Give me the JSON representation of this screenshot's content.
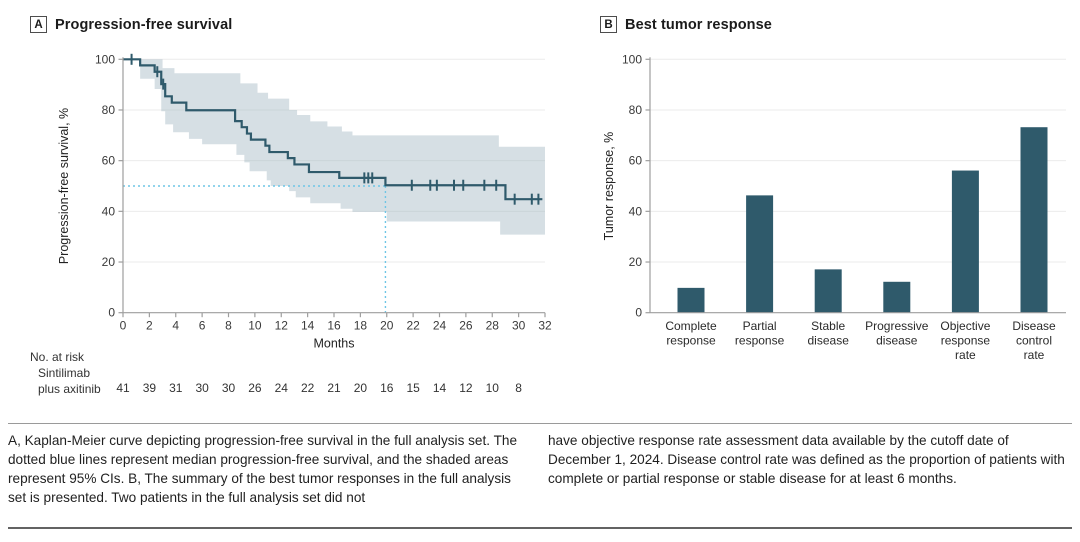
{
  "panelA": {
    "letter": "A",
    "title": "Progression-free survival"
  },
  "panelB": {
    "letter": "B",
    "title": "Best tumor response"
  },
  "colors": {
    "teal": "#2f5a6b",
    "ci_band": "#a5b7c4",
    "median_dotted": "#6ec6e6",
    "gridline": "#ebebeb",
    "axis": "#9e9e9e",
    "tick_text": "#3a3a3a"
  },
  "chart_data": [
    {
      "type": "line",
      "subtype": "kaplan-meier-step",
      "title": "Progression-free survival",
      "xlabel": "Months",
      "ylabel": "Progression-free survival, %",
      "xlim": [
        0,
        32
      ],
      "ylim": [
        0,
        100
      ],
      "xticks": [
        0,
        2,
        4,
        6,
        8,
        10,
        12,
        14,
        16,
        18,
        20,
        22,
        24,
        26,
        28,
        30,
        32
      ],
      "yticks": [
        0,
        20,
        40,
        60,
        80,
        100
      ],
      "grid": "horizontal",
      "series": [
        {
          "name": "Sintilimab plus axitinib",
          "steps": [
            [
              0,
              100
            ],
            [
              1.3,
              97.6
            ],
            [
              2.4,
              95.1
            ],
            [
              2.9,
              90.2
            ],
            [
              3.2,
              85.4
            ],
            [
              3.7,
              82.9
            ],
            [
              4.8,
              79.9
            ],
            [
              8.5,
              75.6
            ],
            [
              9.0,
              73.2
            ],
            [
              9.4,
              70.7
            ],
            [
              9.7,
              68.3
            ],
            [
              10.8,
              65.9
            ],
            [
              11.1,
              63.4
            ],
            [
              12.5,
              61.0
            ],
            [
              13.0,
              58.5
            ],
            [
              14.1,
              55.5
            ],
            [
              16.4,
              53.2
            ],
            [
              19.9,
              50.3
            ],
            [
              29.0,
              44.8
            ]
          ],
          "end_x": 31.8,
          "censors": [
            [
              0.65,
              100
            ],
            [
              2.6,
              95.1
            ],
            [
              3.05,
              90.2
            ],
            [
              18.3,
              53.2
            ],
            [
              18.6,
              53.2
            ],
            [
              18.9,
              53.2
            ],
            [
              21.9,
              50.3
            ],
            [
              23.3,
              50.3
            ],
            [
              23.8,
              50.3
            ],
            [
              25.1,
              50.3
            ],
            [
              25.8,
              50.3
            ],
            [
              27.4,
              50.3
            ],
            [
              28.3,
              50.3
            ],
            [
              29.7,
              44.8
            ],
            [
              31.0,
              44.8
            ],
            [
              31.5,
              44.8
            ]
          ]
        }
      ],
      "ci_upper": [
        [
          0,
          100
        ],
        [
          3.0,
          96.5
        ],
        [
          3.9,
          94.5
        ],
        [
          8.9,
          90.5
        ],
        [
          10.2,
          86.8
        ],
        [
          11.0,
          84.5
        ],
        [
          12.6,
          80.0
        ],
        [
          13.2,
          78.0
        ],
        [
          14.2,
          75.5
        ],
        [
          15.5,
          73.5
        ],
        [
          16.6,
          71.5
        ],
        [
          17.4,
          70.0
        ],
        [
          28.5,
          65.5
        ]
      ],
      "ci_lower": [
        [
          0,
          100
        ],
        [
          1.3,
          92.3
        ],
        [
          2.4,
          88.3
        ],
        [
          2.9,
          79.5
        ],
        [
          3.2,
          74.3
        ],
        [
          3.8,
          71.2
        ],
        [
          5.0,
          68.6
        ],
        [
          6.0,
          66.5
        ],
        [
          8.6,
          62.3
        ],
        [
          9.2,
          59.3
        ],
        [
          9.6,
          55.8
        ],
        [
          10.9,
          52.2
        ],
        [
          11.2,
          50.0
        ],
        [
          12.6,
          48.0
        ],
        [
          13.1,
          45.5
        ],
        [
          14.2,
          43.2
        ],
        [
          16.5,
          41.0
        ],
        [
          17.4,
          39.8
        ],
        [
          20.0,
          36.0
        ],
        [
          28.6,
          30.8
        ]
      ],
      "ci_end_x": 32,
      "median_lines": {
        "x": 19.9,
        "y": 50
      },
      "at_risk": {
        "label": "No. at risk",
        "group_line1": "Sintilimab",
        "group_line2": "plus axitinib",
        "months": [
          0,
          2,
          4,
          6,
          8,
          10,
          12,
          14,
          16,
          18,
          20,
          22,
          24,
          26,
          28,
          30
        ],
        "values": [
          41,
          39,
          31,
          30,
          30,
          26,
          24,
          22,
          21,
          20,
          16,
          15,
          14,
          12,
          10,
          8
        ]
      }
    },
    {
      "type": "bar",
      "title": "Best tumor response",
      "xlabel": "",
      "ylabel": "Tumor response, %",
      "ylim": [
        0,
        100
      ],
      "yticks": [
        0,
        20,
        40,
        60,
        80,
        100
      ],
      "grid": "horizontal",
      "categories": [
        [
          "Complete",
          "response"
        ],
        [
          "Partial",
          "response"
        ],
        [
          "Stable",
          "disease"
        ],
        [
          "Progressive",
          "disease"
        ],
        [
          "Objective",
          "response",
          "rate"
        ],
        [
          "Disease",
          "control",
          "rate"
        ]
      ],
      "values": [
        9.8,
        46.3,
        17.1,
        12.2,
        56.1,
        73.2
      ]
    }
  ],
  "caption": {
    "left": "A, Kaplan-Meier curve depicting progression-free survival in the full analysis set. The dotted blue lines represent median progression-free survival, and the shaded areas represent 95% CIs. B, The summary of the best tumor responses in the full analysis set is presented. Two patients in the full analysis set did not",
    "right": "have objective response rate assessment data available by the cutoff date of December 1, 2024. Disease control rate was defined as the proportion of patients with complete or partial response or stable disease for at least 6 months."
  }
}
